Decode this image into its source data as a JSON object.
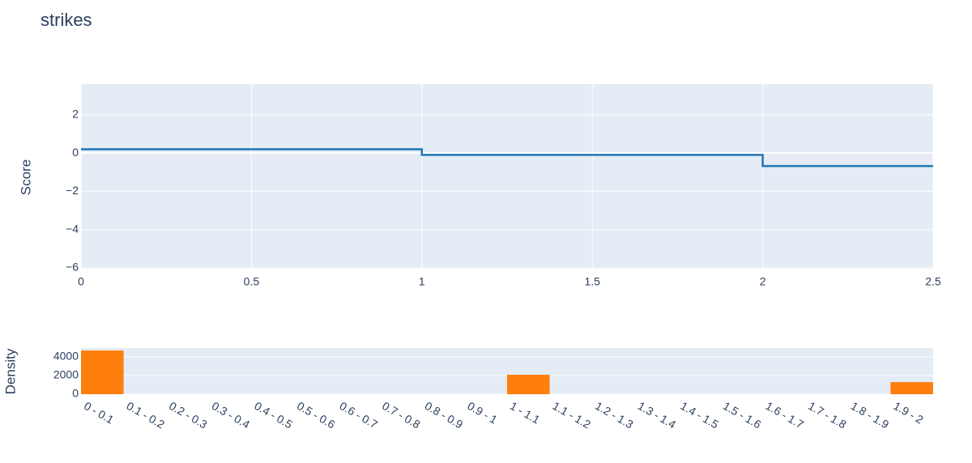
{
  "chart_data": [
    {
      "type": "line",
      "title": "strikes",
      "line_shape": "hv",
      "y_label": "Score",
      "x": [
        0,
        1,
        2,
        2.5
      ],
      "values": [
        0.2,
        -0.1,
        -0.68,
        -0.68
      ],
      "color": "#1f77b4",
      "xlim": [
        0,
        2.5
      ],
      "xticks": [
        0,
        0.5,
        1,
        1.5,
        2,
        2.5
      ],
      "ylim": [
        -6.05,
        3.6
      ],
      "yticks": [
        {
          "value": -6,
          "label": "−6"
        },
        {
          "value": -4,
          "label": "−4"
        },
        {
          "value": -2,
          "label": "−2"
        },
        0,
        2
      ],
      "grid": true
    },
    {
      "type": "bar",
      "y_label": "Density",
      "color": "#ff7f0e",
      "categories": [
        "0 - 0.1",
        "0.1 - 0.2",
        "0.2 - 0.3",
        "0.3 - 0.4",
        "0.4 - 0.5",
        "0.5 - 0.6",
        "0.6 - 0.7",
        "0.7 - 0.8",
        "0.8 - 0.9",
        "0.9 - 1",
        "1 - 1.1",
        "1.1 - 1.2",
        "1.2 - 1.3",
        "1.3 - 1.4",
        "1.4 - 1.5",
        "1.5 - 1.6",
        "1.6 - 1.7",
        "1.7 - 1.8",
        "1.8 - 1.9",
        "1.9 - 2"
      ],
      "values": [
        4700,
        0,
        0,
        0,
        0,
        0,
        0,
        0,
        0,
        0,
        2090,
        0,
        0,
        0,
        0,
        0,
        0,
        0,
        0,
        1300
      ],
      "ylim": [
        0,
        4960
      ],
      "yticks": [
        0,
        2000,
        4000
      ],
      "grid": true
    }
  ]
}
